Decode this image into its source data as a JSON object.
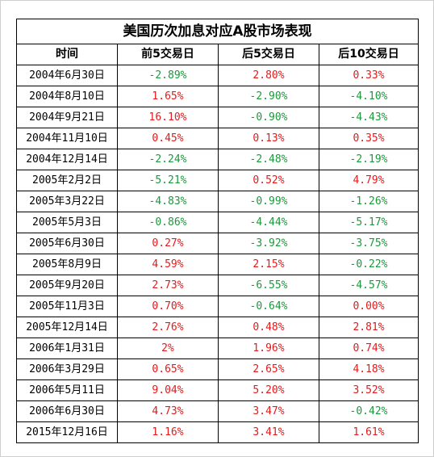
{
  "title": "美国历次加息对应A股市场表现",
  "headers": [
    "时间",
    "前5交易日",
    "后5交易日",
    "后10交易日"
  ],
  "colors": {
    "up": "#e8191b",
    "down": "#1a9a3a"
  },
  "rows": [
    {
      "date": "2004年6月30日",
      "cells": [
        {
          "v": "-2.89%",
          "s": "down"
        },
        {
          "v": "2.80%",
          "s": "up"
        },
        {
          "v": "0.33%",
          "s": "up"
        }
      ]
    },
    {
      "date": "2004年8月10日",
      "cells": [
        {
          "v": "1.65%",
          "s": "up"
        },
        {
          "v": "-2.90%",
          "s": "down"
        },
        {
          "v": "-4.10%",
          "s": "down"
        }
      ]
    },
    {
      "date": "2004年9月21日",
      "cells": [
        {
          "v": "16.10%",
          "s": "up"
        },
        {
          "v": "-0.90%",
          "s": "down"
        },
        {
          "v": "-4.43%",
          "s": "down"
        }
      ]
    },
    {
      "date": "2004年11月10日",
      "cells": [
        {
          "v": "0.45%",
          "s": "up"
        },
        {
          "v": "0.13%",
          "s": "up"
        },
        {
          "v": "0.35%",
          "s": "up"
        }
      ]
    },
    {
      "date": "2004年12月14日",
      "cells": [
        {
          "v": "-2.24%",
          "s": "down"
        },
        {
          "v": "-2.48%",
          "s": "down"
        },
        {
          "v": "-2.19%",
          "s": "down"
        }
      ]
    },
    {
      "date": "2005年2月2日",
      "cells": [
        {
          "v": "-5.21%",
          "s": "down"
        },
        {
          "v": "0.52%",
          "s": "up"
        },
        {
          "v": "4.79%",
          "s": "up"
        }
      ]
    },
    {
      "date": "2005年3月22日",
      "cells": [
        {
          "v": "-4.83%",
          "s": "down"
        },
        {
          "v": "-0.99%",
          "s": "down"
        },
        {
          "v": "-1.26%",
          "s": "down"
        }
      ]
    },
    {
      "date": "2005年5月3日",
      "cells": [
        {
          "v": "-0.86%",
          "s": "down"
        },
        {
          "v": "-4.44%",
          "s": "down"
        },
        {
          "v": "-5.17%",
          "s": "down"
        }
      ]
    },
    {
      "date": "2005年6月30日",
      "cells": [
        {
          "v": "0.27%",
          "s": "up"
        },
        {
          "v": "-3.92%",
          "s": "down"
        },
        {
          "v": "-3.75%",
          "s": "down"
        }
      ]
    },
    {
      "date": "2005年8月9日",
      "cells": [
        {
          "v": "4.59%",
          "s": "up"
        },
        {
          "v": "2.15%",
          "s": "up"
        },
        {
          "v": "-0.22%",
          "s": "down"
        }
      ]
    },
    {
      "date": "2005年9月20日",
      "cells": [
        {
          "v": "2.73%",
          "s": "up"
        },
        {
          "v": "-6.55%",
          "s": "down"
        },
        {
          "v": "-4.57%",
          "s": "down"
        }
      ]
    },
    {
      "date": "2005年11月3日",
      "cells": [
        {
          "v": "0.70%",
          "s": "up"
        },
        {
          "v": "-0.64%",
          "s": "down"
        },
        {
          "v": "0.00%",
          "s": "up"
        }
      ]
    },
    {
      "date": "2005年12月14日",
      "cells": [
        {
          "v": "2.76%",
          "s": "up"
        },
        {
          "v": "0.48%",
          "s": "up"
        },
        {
          "v": "2.81%",
          "s": "up"
        }
      ]
    },
    {
      "date": "2006年1月31日",
      "cells": [
        {
          "v": "2%",
          "s": "up"
        },
        {
          "v": "1.96%",
          "s": "up"
        },
        {
          "v": "0.74%",
          "s": "up"
        }
      ]
    },
    {
      "date": "2006年3月29日",
      "cells": [
        {
          "v": "0.65%",
          "s": "up"
        },
        {
          "v": "2.65%",
          "s": "up"
        },
        {
          "v": "4.18%",
          "s": "up"
        }
      ]
    },
    {
      "date": "2006年5月11日",
      "cells": [
        {
          "v": "9.04%",
          "s": "up"
        },
        {
          "v": "5.20%",
          "s": "up"
        },
        {
          "v": "3.52%",
          "s": "up"
        }
      ]
    },
    {
      "date": "2006年6月30日",
      "cells": [
        {
          "v": "4.73%",
          "s": "up"
        },
        {
          "v": "3.47%",
          "s": "up"
        },
        {
          "v": "-0.42%",
          "s": "down"
        }
      ]
    },
    {
      "date": "2015年12月16日",
      "cells": [
        {
          "v": "1.16%",
          "s": "up"
        },
        {
          "v": "3.41%",
          "s": "up"
        },
        {
          "v": "1.61%",
          "s": "up"
        }
      ]
    }
  ]
}
